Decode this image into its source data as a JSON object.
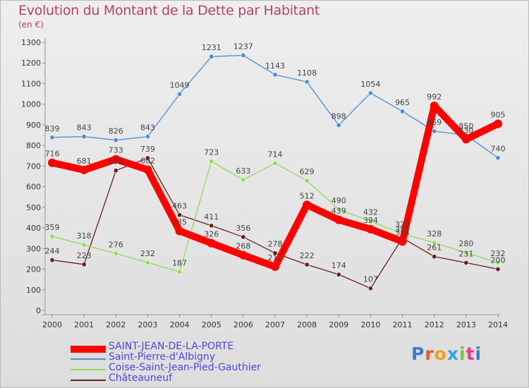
{
  "title": "Evolution du Montant de la Dette par Habitant",
  "unit": "(en €)",
  "logo": "Proxiti",
  "chart_data": {
    "type": "line",
    "x": [
      "2000",
      "2001",
      "2002",
      "2003",
      "2004",
      "2005",
      "2006",
      "2007",
      "2008",
      "2009",
      "2010",
      "2011",
      "2012",
      "2013",
      "2014"
    ],
    "ylim": [
      0,
      1300
    ],
    "yticks": [
      0,
      100,
      200,
      300,
      400,
      500,
      600,
      700,
      800,
      900,
      1000,
      1100,
      1200,
      1300
    ],
    "grid": false,
    "legend_position": "bottom-left",
    "series": [
      {
        "name": "SAINT-JEAN-DE-LA-PORTE",
        "color": "#ff0000",
        "values": [
          716,
          681,
          733,
          682,
          385,
          326,
          268,
          212,
          512,
          439,
          394,
          334,
          992,
          830,
          905
        ]
      },
      {
        "name": "Saint-Pierre-d'Albigny",
        "color": "#4a8fd4",
        "values": [
          839,
          843,
          826,
          843,
          1049,
          1231,
          1237,
          1143,
          1108,
          898,
          1054,
          965,
          869,
          850,
          740
        ]
      },
      {
        "name": "Coise-Saint-Jean-Pied-Gauthier",
        "color": "#8fdc55",
        "values": [
          359,
          318,
          276,
          232,
          187,
          723,
          633,
          714,
          629,
          490,
          432,
          373,
          328,
          280,
          232
        ]
      },
      {
        "name": "Châteauneuf",
        "color": "#6a1f1f",
        "values": [
          244,
          223,
          678,
          739,
          463,
          411,
          356,
          278,
          222,
          174,
          107,
          351,
          261,
          231,
          200
        ]
      }
    ],
    "data_labels": [
      [
        "716",
        "681",
        "733",
        "682",
        "385",
        "326",
        "268",
        "212",
        "512",
        "439",
        "394",
        "334",
        "992",
        "830",
        "905"
      ],
      [
        "839",
        "843",
        "826",
        "843",
        "1049",
        "1231",
        "1237",
        "1143",
        "1108",
        "898",
        "1054",
        "965",
        "869",
        "850",
        "740"
      ],
      [
        "359",
        "318",
        "276",
        "232",
        "187",
        "723",
        "633",
        "714",
        "629",
        "490",
        "432",
        "373",
        "328",
        "280",
        "232"
      ],
      [
        "244",
        "223",
        "678",
        "739",
        "463",
        "411",
        "356",
        "278",
        "222",
        "174",
        "107",
        "351",
        "261",
        "231",
        "200"
      ]
    ]
  }
}
